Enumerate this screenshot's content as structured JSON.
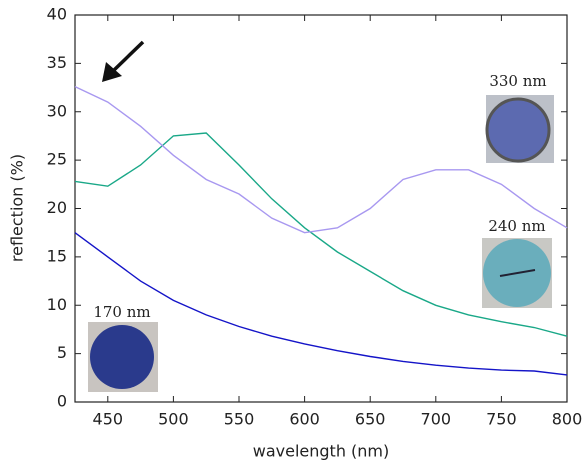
{
  "chart_data": {
    "type": "line",
    "x_label": "wavelength (nm)",
    "y_label": "reflection (%)",
    "x": [
      425,
      450,
      475,
      500,
      525,
      550,
      575,
      600,
      625,
      650,
      675,
      700,
      725,
      750,
      775,
      800
    ],
    "series": [
      {
        "color": "#1414c8",
        "values": [
          17.5,
          15,
          12.5,
          10.5,
          9,
          7.8,
          6.8,
          6,
          5.3,
          4.7,
          4.2,
          3.8,
          3.5,
          3.3,
          3.2,
          2.8
        ]
      },
      {
        "color": "#1aa888",
        "values": [
          22.8,
          22.3,
          24.5,
          27.5,
          27.8,
          24.5,
          21,
          18,
          15.5,
          13.5,
          11.5,
          10,
          9,
          8.3,
          7.7,
          6.8
        ]
      },
      {
        "color": "#a898f0",
        "values": [
          32.6,
          31,
          28.5,
          25.5,
          23,
          21.5,
          19,
          17.5,
          18,
          20,
          23,
          24,
          24,
          22.5,
          20,
          18
        ]
      }
    ],
    "annotations": [
      "170 nm",
      "240 nm",
      "330 nm"
    ],
    "xlim": [
      425,
      800
    ],
    "xticks": [
      450,
      500,
      550,
      600,
      650,
      700,
      750,
      800
    ],
    "ylim": [
      0,
      40
    ],
    "yticks": [
      0,
      5,
      10,
      15,
      20,
      25,
      30,
      35,
      40
    ],
    "grid": false
  }
}
